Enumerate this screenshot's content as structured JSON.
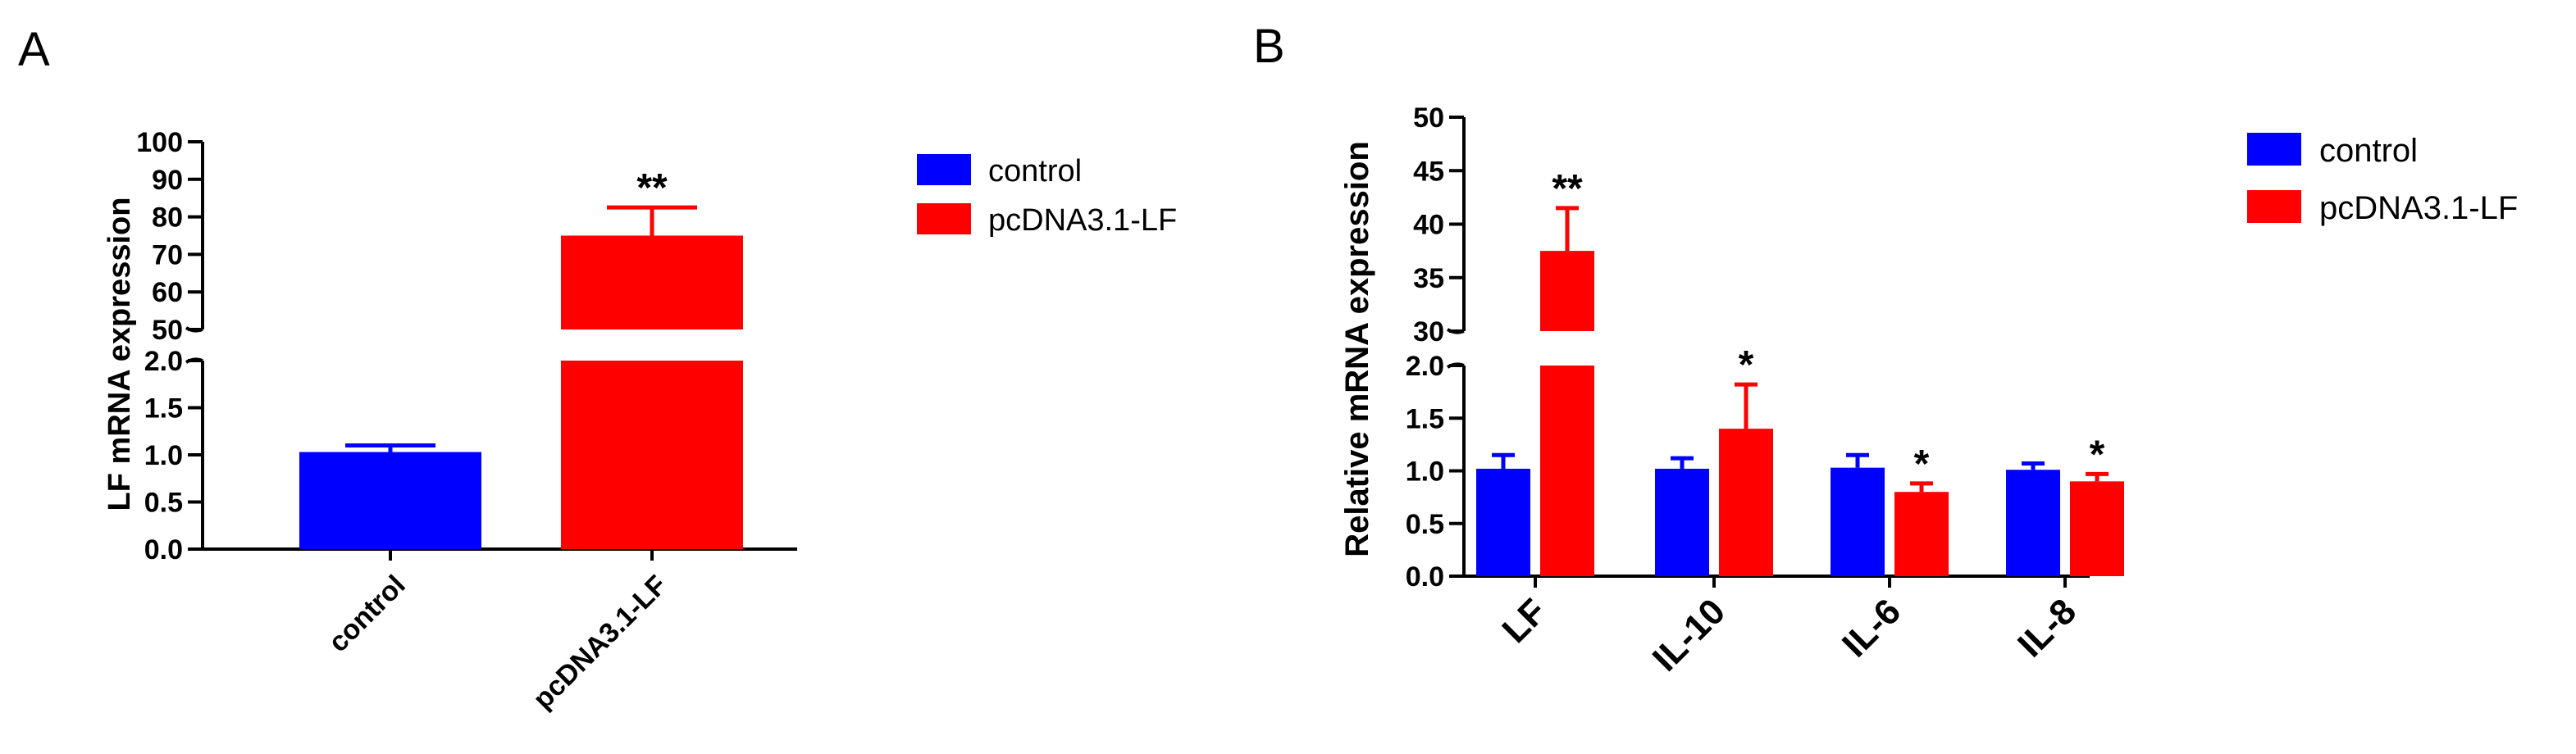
{
  "chart_data": [
    {
      "panel": "A",
      "type": "bar",
      "ylabel": "LF mRNA expression",
      "categories": [
        "control",
        "pcDNA3.1-LF"
      ],
      "values": [
        1.03,
        75
      ],
      "errors": [
        0.07,
        7.5
      ],
      "colors": [
        "#0000ff",
        "#ff0000"
      ],
      "significance": [
        "",
        "**"
      ],
      "axis_break": true,
      "lower_ylim": [
        0,
        2.0
      ],
      "upper_ylim": [
        50,
        100
      ],
      "lower_ticks": [
        "0.0",
        "0.5",
        "1.0",
        "1.5",
        "2.0"
      ],
      "upper_ticks": [
        "50",
        "60",
        "70",
        "80",
        "90",
        "100"
      ],
      "legend": [
        {
          "label": "control",
          "color": "#0000ff"
        },
        {
          "label": "pcDNA3.1-LF",
          "color": "#ff0000"
        }
      ]
    },
    {
      "panel": "B",
      "type": "bar",
      "ylabel": "Relative mRNA expression",
      "categories": [
        "LF",
        "IL-10",
        "IL-6",
        "IL-8"
      ],
      "series": [
        {
          "name": "control",
          "color": "#0000ff",
          "values": [
            1.02,
            1.02,
            1.03,
            1.01
          ],
          "errors": [
            0.13,
            0.1,
            0.12,
            0.06
          ],
          "significance": [
            "",
            "",
            "",
            ""
          ]
        },
        {
          "name": "pcDNA3.1-LF",
          "color": "#ff0000",
          "values": [
            37.5,
            1.4,
            0.8,
            0.9
          ],
          "errors": [
            4.0,
            0.42,
            0.08,
            0.07
          ],
          "significance": [
            "**",
            "*",
            "*",
            "*"
          ]
        }
      ],
      "axis_break": true,
      "lower_ylim": [
        0,
        2.0
      ],
      "upper_ylim": [
        30,
        50
      ],
      "lower_ticks": [
        "0.0",
        "0.5",
        "1.0",
        "1.5",
        "2.0"
      ],
      "upper_ticks": [
        "30",
        "35",
        "40",
        "45",
        "50"
      ],
      "legend": [
        {
          "label": "control",
          "color": "#0000ff"
        },
        {
          "label": "pcDNA3.1-LF",
          "color": "#ff0000"
        }
      ]
    }
  ]
}
